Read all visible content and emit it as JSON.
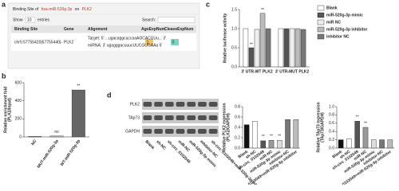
{
  "panel_labels": [
    "a",
    "b",
    "c",
    "d"
  ],
  "binding_table": {
    "title": [
      "Binding Site of",
      "hsa-miR-520g-3p",
      "on",
      "PLK2"
    ],
    "show": "Show",
    "entries_count": "10",
    "entries": "entries",
    "search": "Search:",
    "columns": [
      "Binding Site",
      "Gene",
      "Alignment",
      "AgoExpNum",
      "CleaveExpNum"
    ],
    "row": [
      "chr5:57755420|57755440|-",
      "PLK2",
      [
        "Target: 5' ...ugacaggcuccaaAGCACUUu... 3'",
        "miRNA: 3' ugagggacuuucUUCGUGAAa 5'"
      ],
      "1",
      "0"
    ]
  },
  "blot": {
    "bands": [
      "PLK2",
      "TAp73",
      "GAPDH"
    ],
    "lanes": [
      "Blank",
      "sh-NC",
      "sh-circ_0102049",
      "miR-NC",
      "miR-520g-3p mimic",
      "inhibitor-NC",
      "sh-circ_0102049+miR-520g-3p inhibitor"
    ]
  },
  "chart_data": [
    {
      "type": "bar",
      "ylabel": [
        "Relative enrichment fold",
        "(PLK2/Input)"
      ],
      "categories": [
        "NC",
        "MUT-miR-520g-3p",
        "WT-miR-520g-3p"
      ],
      "values": [
        5,
        10,
        520
      ],
      "colors": [
        "#888888",
        "#cccccc",
        "#666666"
      ],
      "significance": [
        null,
        "ns",
        "**"
      ],
      "ylim": [
        0,
        600
      ],
      "yticks": [
        0,
        200,
        400,
        600
      ]
    },
    {
      "type": "bar",
      "ylabel": [
        "Relative luciferase activity"
      ],
      "categories": [
        "3' UTR-WT PLK2",
        "3' UTR-MUT PLK2"
      ],
      "series": [
        {
          "name": "Blank",
          "color": "#ffffff",
          "values": [
            1.0,
            1.0
          ]
        },
        {
          "name": "miR-520g-3p mimic",
          "color": "#555555",
          "values": [
            0.5,
            1.0
          ],
          "significance": [
            "**",
            null
          ]
        },
        {
          "name": "miR NC",
          "color": "#eeeeee",
          "values": [
            0.98,
            1.0
          ]
        },
        {
          "name": "miR-520g-3p inhibitor",
          "color": "#bbbbbb",
          "values": [
            1.4,
            1.0
          ],
          "significance": [
            "**",
            null
          ]
        },
        {
          "name": "inhibitor NC",
          "color": "#777777",
          "values": [
            1.0,
            0.98
          ]
        }
      ],
      "legend": "right",
      "ylim": [
        0,
        1.5
      ],
      "yticks": [
        {
          "value": 0,
          "label": "0.0"
        },
        0.5,
        {
          "value": 1,
          "label": "1.0"
        },
        1.5
      ]
    },
    {
      "type": "bar",
      "ylabel": [
        "Relative PLK2 expression",
        "(PLK2/GAPDH)"
      ],
      "categories": [
        "Blank",
        "sh-NC",
        "sh-circ_0102049",
        "miR-NC",
        "miR-520g-3p mimic",
        "inhibitor-NC",
        "sh-circ_0102049+miR-520g-3p inhibitor"
      ],
      "values": [
        0.45,
        0.52,
        0.14,
        0.15,
        0.15,
        0.55,
        0.55
      ],
      "colors": [
        "#111111",
        "#ffffff",
        "#555555",
        "#999999",
        "#dddddd",
        "#777777",
        "#bbbbbb"
      ],
      "significance": [
        null,
        null,
        "**",
        "**",
        "**",
        null,
        null
      ],
      "ylim": [
        0,
        0.8
      ],
      "yticks": [
        {
          "value": 0,
          "label": "0.0"
        },
        0.2,
        0.4,
        0.6,
        0.8
      ]
    },
    {
      "type": "bar",
      "ylabel": [
        "Relative TAp73 expression",
        "(TAp73/GAPDH)"
      ],
      "categories": [
        "Blank",
        "sh-NC",
        "sh-circ_0102049",
        "miR-NC",
        "miR-520g-3p mimic",
        "inhibitor-NC",
        "sh-circ_0102049+miR-520g-3p inhibitor"
      ],
      "values": [
        0.2,
        0.22,
        0.65,
        0.5,
        0.2,
        0.2,
        0.2
      ],
      "colors": [
        "#111111",
        "#ffffff",
        "#555555",
        "#999999",
        "#dddddd",
        "#777777",
        "#bbbbbb"
      ],
      "significance": [
        null,
        null,
        "**",
        "**",
        null,
        null,
        null
      ],
      "ylim": [
        0,
        1.0
      ],
      "yticks": [
        {
          "value": 0,
          "label": "0.0"
        },
        0.2,
        0.4,
        0.6,
        0.8,
        {
          "value": 1,
          "label": "1.0"
        }
      ]
    }
  ]
}
